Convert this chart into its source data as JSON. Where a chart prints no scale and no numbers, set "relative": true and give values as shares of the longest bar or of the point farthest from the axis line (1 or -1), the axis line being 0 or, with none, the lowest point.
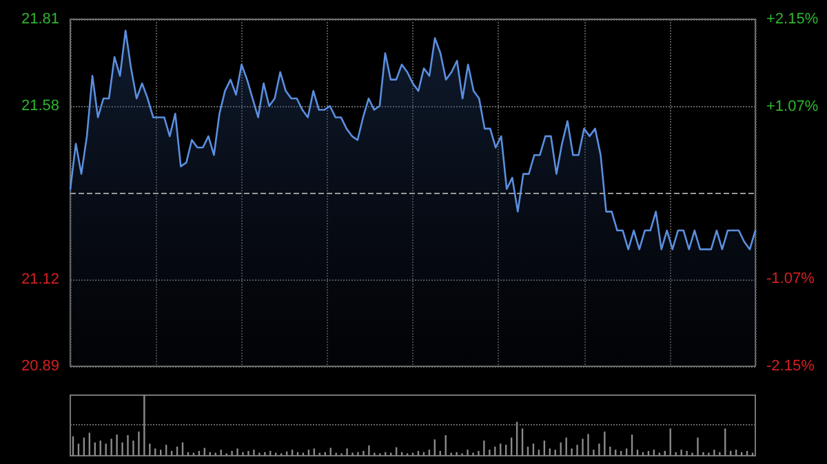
{
  "chart_data": [
    {
      "type": "area",
      "tick_labels": "y",
      "grid": true,
      "line_style": "solid",
      "categories": [
        null,
        null,
        null,
        null,
        null,
        null,
        null,
        null,
        null,
        null,
        null,
        null,
        null,
        null,
        null,
        null,
        null,
        null,
        null,
        null,
        null,
        null,
        null,
        null,
        null,
        null,
        null,
        null,
        null,
        null,
        null,
        null,
        null,
        null,
        null,
        null,
        null,
        null,
        null,
        null,
        null,
        null,
        null,
        null,
        null,
        null,
        null,
        null,
        null,
        null,
        null,
        null,
        null,
        null,
        null,
        null,
        null,
        null,
        null,
        null,
        null,
        null,
        null,
        null,
        null,
        null,
        null,
        null,
        null,
        null,
        null,
        null,
        null,
        null,
        null,
        null,
        null,
        null,
        null,
        null,
        null,
        null,
        null,
        null,
        null,
        null,
        null,
        null,
        null,
        null,
        null,
        null,
        null,
        null,
        null,
        null,
        null,
        null,
        null,
        null,
        null,
        null,
        null,
        null,
        null,
        null,
        null,
        null,
        null,
        null,
        null,
        null,
        null,
        null,
        null,
        null,
        null,
        null,
        null,
        null,
        null,
        null,
        null,
        null,
        null
      ],
      "series": [
        {
          "color": "#5b8fe0",
          "values": [
            21.36,
            21.48,
            21.4,
            21.5,
            21.66,
            21.55,
            21.6,
            21.6,
            21.71,
            21.66,
            21.78,
            21.68,
            21.6,
            21.64,
            21.6,
            21.55,
            21.55,
            21.55,
            21.5,
            21.56,
            21.42,
            21.43,
            21.49,
            21.47,
            21.47,
            21.5,
            21.45,
            21.56,
            21.62,
            21.65,
            21.61,
            21.69,
            21.65,
            21.6,
            21.55,
            21.64,
            21.58,
            21.6,
            21.67,
            21.62,
            21.6,
            21.6,
            21.57,
            21.55,
            21.62,
            21.57,
            21.57,
            21.58,
            21.55,
            21.55,
            21.52,
            21.5,
            21.49,
            21.55,
            21.6,
            21.57,
            21.58,
            21.72,
            21.65,
            21.65,
            21.69,
            21.67,
            21.64,
            21.62,
            21.68,
            21.66,
            21.76,
            21.72,
            21.65,
            21.67,
            21.7,
            21.6,
            21.69,
            21.62,
            21.6,
            21.52,
            21.52,
            21.47,
            21.5,
            21.36,
            21.39,
            21.3,
            21.4,
            21.4,
            21.45,
            21.45,
            21.5,
            21.5,
            21.4,
            21.48,
            21.54,
            21.45,
            21.45,
            21.52,
            21.5,
            21.52,
            21.45,
            21.3,
            21.3,
            21.25,
            21.25,
            21.2,
            21.25,
            21.2,
            21.25,
            21.25,
            21.3,
            21.2,
            21.25,
            21.2,
            21.25,
            21.25,
            21.2,
            21.25,
            21.2,
            21.2,
            21.2,
            21.25,
            21.2,
            21.25,
            21.25,
            21.25,
            21.22,
            21.2,
            21.25
          ]
        }
      ],
      "ylim": [
        20.89,
        21.81
      ],
      "yticks": [
        20.89,
        21.12,
        21.58,
        21.81
      ],
      "y2lim": [
        -2.15,
        2.15
      ],
      "y2ticks": [
        {
          "value": -2.15,
          "label": "-2.15%"
        },
        {
          "value": -1.07,
          "label": "-1.07%"
        },
        {
          "value": 1.07,
          "label": "+1.07%"
        },
        {
          "value": 2.15,
          "label": "+2.15%"
        }
      ],
      "ref_lines": [
        {
          "axis": "y",
          "value": 21.35,
          "color": "#9a9a9a",
          "line_style": "dashed"
        }
      ]
    },
    {
      "type": "bar",
      "relative": true,
      "tick_labels": false,
      "ref_lines": [
        {
          "axis": "y",
          "value": 0.52,
          "color": "#666666",
          "line_style": "dotted"
        }
      ],
      "categories": [
        null,
        null,
        null,
        null,
        null,
        null,
        null,
        null,
        null,
        null,
        null,
        null,
        null,
        null,
        null,
        null,
        null,
        null,
        null,
        null,
        null,
        null,
        null,
        null,
        null,
        null,
        null,
        null,
        null,
        null,
        null,
        null,
        null,
        null,
        null,
        null,
        null,
        null,
        null,
        null,
        null,
        null,
        null,
        null,
        null,
        null,
        null,
        null,
        null,
        null,
        null,
        null,
        null,
        null,
        null,
        null,
        null,
        null,
        null,
        null,
        null,
        null,
        null,
        null,
        null,
        null,
        null,
        null,
        null,
        null,
        null,
        null,
        null,
        null,
        null,
        null,
        null,
        null,
        null,
        null,
        null,
        null,
        null,
        null,
        null,
        null,
        null,
        null,
        null,
        null,
        null,
        null,
        null,
        null,
        null,
        null,
        null,
        null,
        null,
        null,
        null,
        null,
        null,
        null,
        null,
        null,
        null,
        null,
        null,
        null,
        null,
        null,
        null,
        null,
        null,
        null,
        null,
        null,
        null,
        null,
        null,
        null,
        null,
        null,
        null
      ],
      "series": [
        {
          "color": "#8a8a8a",
          "values": [
            0.32,
            0.2,
            0.3,
            0.38,
            0.22,
            0.25,
            0.2,
            0.28,
            0.35,
            0.22,
            0.34,
            0.25,
            0.4,
            1,
            0.2,
            0.12,
            0.1,
            0.18,
            0.08,
            0.15,
            0.22,
            0.06,
            0.05,
            0.08,
            0.13,
            0.06,
            0.05,
            0.1,
            0.04,
            0.08,
            0.12,
            0.06,
            0.08,
            0.1,
            0.05,
            0.06,
            0.08,
            0.05,
            0.04,
            0.07,
            0.1,
            0.06,
            0.05,
            0.1,
            0.12,
            0.05,
            0.06,
            0.13,
            0.05,
            0.04,
            0.12,
            0.05,
            0.06,
            0.08,
            0.17,
            0.05,
            0.04,
            0.06,
            0.05,
            0.14,
            0.06,
            0.04,
            0.05,
            0.08,
            0.06,
            0.1,
            0.27,
            0.08,
            0.34,
            0.05,
            0.06,
            0.04,
            0.1,
            0.05,
            0.08,
            0.25,
            0.1,
            0.15,
            0.2,
            0.18,
            0.3,
            0.56,
            0.45,
            0.15,
            0.2,
            0.1,
            0.25,
            0.12,
            0.1,
            0.22,
            0.3,
            0.12,
            0.18,
            0.28,
            0.36,
            0.1,
            0.2,
            0.4,
            0.15,
            0.1,
            0.08,
            0.12,
            0.35,
            0.1,
            0.06,
            0.08,
            0.1,
            0.05,
            0.08,
            0.45,
            0.06,
            0.1,
            0.08,
            0.05,
            0.3,
            0.06,
            0.05,
            0.1,
            0.06,
            0.45,
            0.08,
            0.1,
            0.06,
            0.08,
            0.05
          ]
        }
      ]
    }
  ]
}
